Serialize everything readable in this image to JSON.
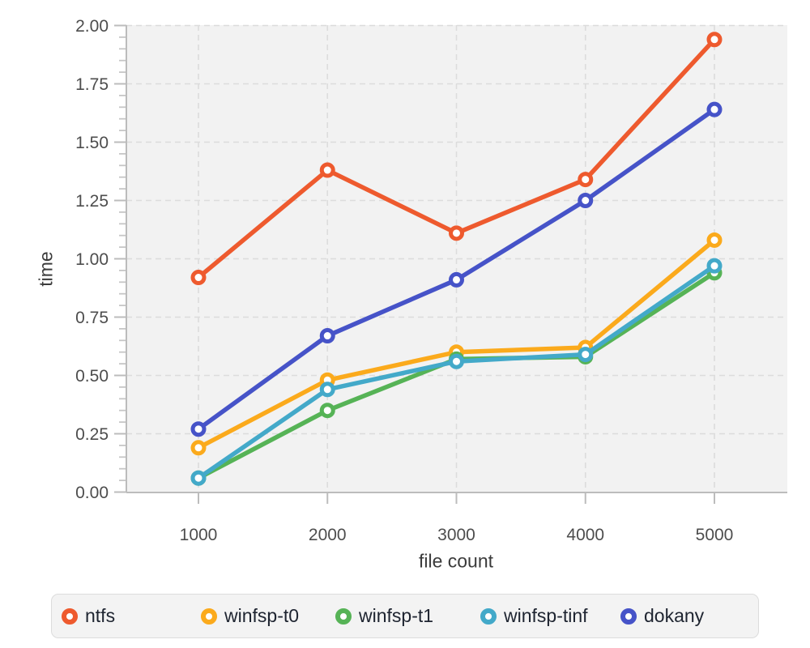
{
  "chart_data": {
    "type": "line",
    "title": "",
    "xlabel": "file count",
    "ylabel": "time",
    "x": [
      1000,
      2000,
      3000,
      4000,
      5000
    ],
    "xticks": [
      "1000",
      "2000",
      "3000",
      "4000",
      "5000"
    ],
    "yticks": [
      "0.00",
      "0.25",
      "0.50",
      "0.75",
      "1.00",
      "1.25",
      "1.50",
      "1.75",
      "2.00"
    ],
    "ylim": [
      0,
      2
    ],
    "ytick_major_step": 0.25,
    "ytick_minor_step": 0.05,
    "grid": "dashed",
    "marker": "open-circle",
    "legend_position": "bottom",
    "series": [
      {
        "name": "ntfs",
        "color": "#ee5a2e",
        "values": [
          0.92,
          1.38,
          1.11,
          1.34,
          1.94
        ]
      },
      {
        "name": "winfsp-t0",
        "color": "#fbaa1c",
        "values": [
          0.19,
          0.48,
          0.6,
          0.62,
          1.08
        ]
      },
      {
        "name": "winfsp-t1",
        "color": "#56b356",
        "values": [
          0.06,
          0.35,
          0.57,
          0.58,
          0.94
        ]
      },
      {
        "name": "winfsp-tinf",
        "color": "#43a9c9",
        "values": [
          0.06,
          0.44,
          0.56,
          0.59,
          0.97
        ]
      },
      {
        "name": "dokany",
        "color": "#4653c8",
        "values": [
          0.27,
          0.67,
          0.91,
          1.25,
          1.64
        ]
      }
    ]
  },
  "colors": {
    "plot_bg": "#f2f2f2",
    "grid": "#dcdcdc",
    "axis": "#bcbcbc",
    "minor_tick": "#c6c6c6",
    "tick_label": "#4d4d4d",
    "axis_title": "#3b3b3b",
    "legend_bg": "#f3f3f3",
    "legend_border": "#dcdcdc",
    "legend_text": "#1e2430"
  }
}
